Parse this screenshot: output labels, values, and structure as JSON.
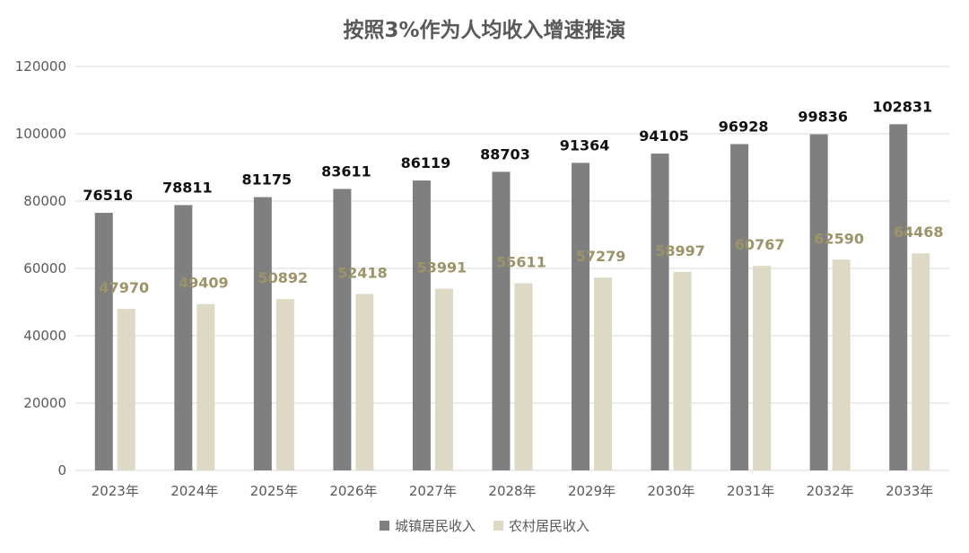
{
  "chart_data": {
    "type": "bar",
    "title": "按照3%作为人均收入增速推演",
    "categories": [
      "2023年",
      "2024年",
      "2025年",
      "2026年",
      "2027年",
      "2028年",
      "2029年",
      "2030年",
      "2031年",
      "2032年",
      "2033年"
    ],
    "series": [
      {
        "name": "城镇居民收入",
        "color": "#7f7f7f",
        "label_color": "#111111",
        "values": [
          76516,
          78811,
          81175,
          83611,
          86119,
          88703,
          91364,
          94105,
          96928,
          99836,
          102831
        ]
      },
      {
        "name": "农村居民收入",
        "color": "#ddd9c4",
        "label_color": "#9c9468",
        "values": [
          47970,
          49409,
          50892,
          52418,
          53991,
          55611,
          57279,
          58997,
          60767,
          62590,
          64468
        ]
      }
    ],
    "ylim": [
      0,
      120000
    ],
    "yticks": [
      "0",
      "20000",
      "40000",
      "60000",
      "80000",
      "100000",
      "120000"
    ],
    "grid": true,
    "legend_position": "bottom"
  }
}
